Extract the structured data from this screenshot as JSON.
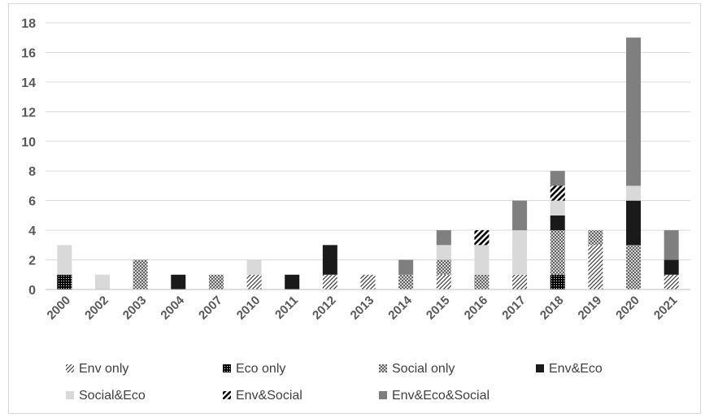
{
  "chart_data": {
    "type": "bar",
    "stacked": true,
    "title": "",
    "xlabel": "",
    "ylabel": "",
    "ylim": [
      0,
      18
    ],
    "y_ticks": [
      0,
      2,
      4,
      6,
      8,
      10,
      12,
      14,
      16,
      18
    ],
    "grid": true,
    "legend_position": "bottom",
    "categories": [
      "2000",
      "2002",
      "2003",
      "2004",
      "2007",
      "2010",
      "2011",
      "2012",
      "2013",
      "2014",
      "2015",
      "2016",
      "2017",
      "2018",
      "2019",
      "2020",
      "2021"
    ],
    "series": [
      {
        "name": "Env only",
        "pattern": "diag-sparse",
        "color": "#595959",
        "values": [
          0,
          0,
          0,
          0,
          0,
          1,
          0,
          1,
          1,
          0,
          1,
          0,
          1,
          0,
          3,
          0,
          1
        ]
      },
      {
        "name": "Eco only",
        "pattern": "dots-dense",
        "color": "#000000",
        "values": [
          1,
          0,
          0,
          0,
          0,
          0,
          0,
          0,
          0,
          0,
          0,
          0,
          0,
          1,
          0,
          0,
          0
        ]
      },
      {
        "name": "Social only",
        "pattern": "crosshatch",
        "color": "#7f7f7f",
        "values": [
          0,
          0,
          2,
          0,
          1,
          0,
          0,
          0,
          0,
          1,
          1,
          1,
          0,
          3,
          1,
          3,
          0
        ]
      },
      {
        "name": "Env&Eco",
        "pattern": "solid",
        "color": "#1a1a1a",
        "values": [
          0,
          0,
          0,
          1,
          0,
          0,
          1,
          2,
          0,
          0,
          0,
          0,
          0,
          1,
          0,
          3,
          1
        ]
      },
      {
        "name": "Social&Eco",
        "pattern": "solid",
        "color": "#d9d9d9",
        "values": [
          2,
          1,
          0,
          0,
          0,
          1,
          0,
          0,
          0,
          0,
          1,
          2,
          3,
          1,
          0,
          1,
          0
        ]
      },
      {
        "name": "Env&Social",
        "pattern": "diag-wide",
        "color": "#000000",
        "values": [
          0,
          0,
          0,
          0,
          0,
          0,
          0,
          0,
          0,
          0,
          0,
          1,
          0,
          1,
          0,
          0,
          0
        ]
      },
      {
        "name": "Env&Eco&Social",
        "pattern": "solid",
        "color": "#7f7f7f",
        "values": [
          0,
          0,
          0,
          0,
          0,
          0,
          0,
          0,
          0,
          1,
          1,
          0,
          2,
          1,
          0,
          10,
          2
        ]
      }
    ]
  }
}
